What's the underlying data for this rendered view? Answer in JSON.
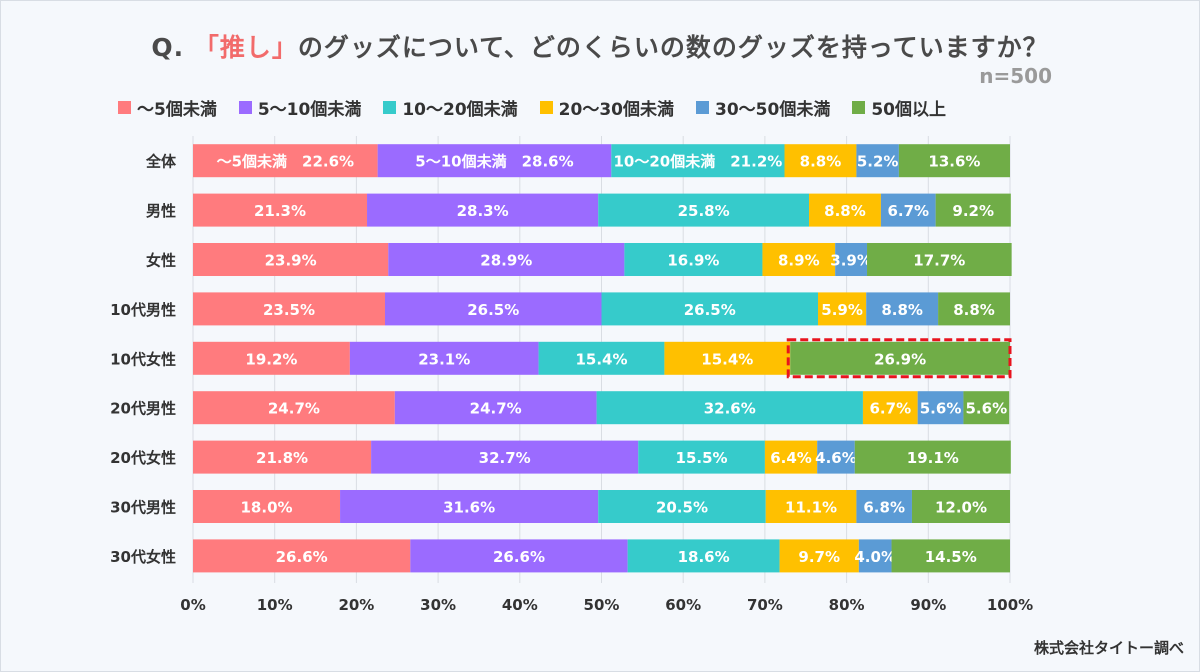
{
  "title": {
    "prefix": "Q.",
    "highlight": "「推し」",
    "rest": "のグッズについて、どのくらいの数のグッズを持っていますか？"
  },
  "sample_size": "n=500",
  "source": "株式会社タイトー調べ",
  "colors": {
    "title_highlight": "#f26b6b",
    "highlight_box": "#e8141e"
  },
  "chart_data": {
    "type": "bar",
    "orientation": "horizontal",
    "stacked": "100%",
    "categories": [
      "全体",
      "男性",
      "女性",
      "10代男性",
      "10代女性",
      "20代男性",
      "20代女性",
      "30代男性",
      "30代女性"
    ],
    "series": [
      {
        "name": "～5個未満",
        "color": "#ff7b7e",
        "values": [
          22.6,
          21.3,
          23.9,
          23.5,
          19.2,
          24.7,
          21.8,
          18.0,
          26.6
        ]
      },
      {
        "name": "5～10個未満",
        "color": "#9b6bff",
        "values": [
          28.6,
          28.3,
          28.9,
          26.5,
          23.1,
          24.7,
          32.7,
          31.6,
          26.6
        ]
      },
      {
        "name": "10～20個未満",
        "color": "#36cbcb",
        "values": [
          21.2,
          25.8,
          16.9,
          26.5,
          15.4,
          32.6,
          15.5,
          20.5,
          18.6
        ]
      },
      {
        "name": "20～30個未満",
        "color": "#ffc000",
        "values": [
          8.8,
          8.8,
          8.9,
          5.9,
          15.4,
          6.7,
          6.4,
          11.1,
          9.7
        ]
      },
      {
        "name": "30～50個未満",
        "color": "#5b9bd5",
        "values": [
          5.2,
          6.7,
          3.9,
          8.8,
          0,
          5.6,
          4.6,
          6.8,
          4.0
        ]
      },
      {
        "name": "50個以上",
        "color": "#70ad47",
        "values": [
          13.6,
          9.2,
          17.7,
          8.8,
          26.9,
          5.6,
          19.1,
          12.0,
          14.5
        ]
      }
    ],
    "first_row_label_prefixes": [
      "～5個未満　",
      "5～10個未満　",
      "10～20個未満　",
      "",
      "",
      ""
    ],
    "x_ticks": [
      "0%",
      "10%",
      "20%",
      "30%",
      "40%",
      "50%",
      "60%",
      "70%",
      "80%",
      "90%",
      "100%"
    ],
    "xlim": [
      0,
      100
    ],
    "grid": true,
    "legend_position": "top",
    "highlight": {
      "category": "10代女性",
      "series": "50個以上"
    }
  }
}
